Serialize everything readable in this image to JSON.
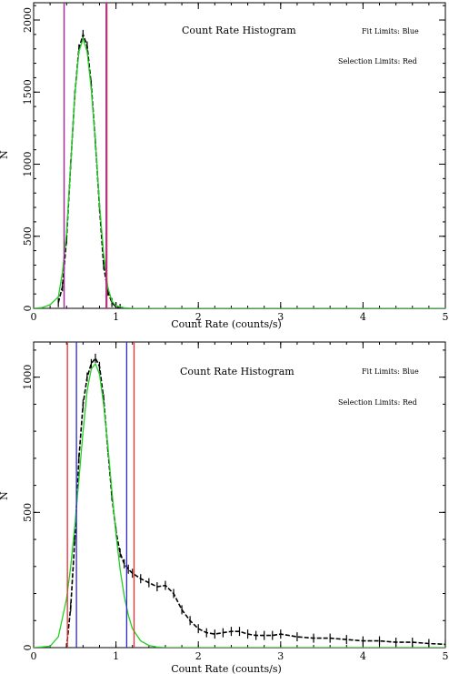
{
  "chart_data": [
    {
      "type": "line",
      "title": "Count Rate Histogram",
      "annotations": [
        "Fit Limits: Blue",
        "Selection Limits: Red"
      ],
      "xlabel": "Count Rate (counts/s)",
      "ylabel": "N",
      "xlim": [
        0,
        5
      ],
      "ylim": [
        0,
        2120
      ],
      "x_ticks": [
        "0",
        "1",
        "2",
        "3",
        "4",
        "5"
      ],
      "y_ticks": [
        {
          "value": 0,
          "label": "0"
        },
        {
          "value": 500,
          "label": "500"
        },
        {
          "value": 1000,
          "label": "1000"
        },
        {
          "value": 1500,
          "label": "1500"
        },
        {
          "value": 2000,
          "label": "2000"
        }
      ],
      "histogram": {
        "x": [
          0.3,
          0.35,
          0.4,
          0.45,
          0.5,
          0.55,
          0.6,
          0.65,
          0.7,
          0.75,
          0.8,
          0.85,
          0.9,
          0.95,
          1.0,
          1.05
        ],
        "y": [
          40,
          150,
          480,
          1000,
          1480,
          1800,
          1900,
          1820,
          1550,
          1150,
          700,
          300,
          120,
          40,
          10,
          0
        ]
      },
      "fit_curve": {
        "x": [
          0.0,
          0.1,
          0.2,
          0.3,
          0.35,
          0.4,
          0.45,
          0.5,
          0.55,
          0.6,
          0.65,
          0.7,
          0.75,
          0.8,
          0.85,
          0.9,
          0.95,
          1.0,
          1.1,
          1.2,
          1.3,
          5.0
        ],
        "y": [
          0,
          5,
          25,
          80,
          250,
          520,
          1000,
          1480,
          1780,
          1870,
          1780,
          1520,
          1150,
          720,
          380,
          150,
          50,
          18,
          4,
          0,
          0,
          0
        ]
      },
      "fit_limits": [
        0.37,
        0.88
      ],
      "selection_limits": [
        0.37,
        0.89
      ],
      "limit_colors": {
        "fit": "#2a2ad0",
        "selection": "#e83030",
        "overlap": "#9b2fa8",
        "fit_curve": "#22d022",
        "data": "#000000"
      }
    },
    {
      "type": "line",
      "title": "Count Rate Histogram",
      "annotations": [
        "Fit Limits: Blue",
        "Selection Limits: Red"
      ],
      "xlabel": "Count Rate (counts/s)",
      "ylabel": "N",
      "xlim": [
        0,
        5
      ],
      "ylim": [
        0,
        1130
      ],
      "x_ticks": [
        "0",
        "1",
        "2",
        "3",
        "4",
        "5"
      ],
      "y_ticks": [
        {
          "value": 0,
          "label": "0"
        },
        {
          "value": 500,
          "label": "500"
        },
        {
          "value": 1000,
          "label": "1000"
        }
      ],
      "histogram": {
        "x": [
          0.4,
          0.45,
          0.5,
          0.55,
          0.6,
          0.65,
          0.7,
          0.75,
          0.8,
          0.85,
          0.9,
          0.95,
          1.0,
          1.05,
          1.1,
          1.15,
          1.2,
          1.3,
          1.4,
          1.5,
          1.6,
          1.7,
          1.8,
          1.9,
          2.0,
          2.1,
          2.2,
          2.3,
          2.4,
          2.5,
          2.6,
          2.7,
          2.8,
          2.9,
          3.0,
          3.2,
          3.4,
          3.6,
          3.8,
          4.0,
          4.2,
          4.4,
          4.6,
          4.8,
          5.0
        ],
        "y": [
          0,
          150,
          400,
          700,
          900,
          1000,
          1050,
          1070,
          1040,
          920,
          740,
          560,
          430,
          350,
          310,
          290,
          275,
          255,
          240,
          225,
          230,
          200,
          140,
          100,
          70,
          55,
          50,
          55,
          60,
          60,
          50,
          45,
          45,
          45,
          50,
          40,
          35,
          35,
          30,
          25,
          25,
          20,
          20,
          15,
          12
        ]
      },
      "fit_curve": {
        "x": [
          0.0,
          0.2,
          0.3,
          0.4,
          0.45,
          0.5,
          0.55,
          0.6,
          0.65,
          0.7,
          0.75,
          0.8,
          0.85,
          0.9,
          0.95,
          1.0,
          1.05,
          1.1,
          1.15,
          1.2,
          1.3,
          1.4,
          1.5,
          1.6,
          1.8,
          5.0
        ],
        "y": [
          0,
          5,
          40,
          180,
          300,
          450,
          620,
          800,
          950,
          1030,
          1050,
          1010,
          900,
          750,
          580,
          420,
          290,
          190,
          120,
          70,
          25,
          8,
          2,
          0,
          0,
          0
        ]
      },
      "fit_limits": [
        0.52,
        1.13
      ],
      "selection_limits": [
        0.41,
        1.22
      ],
      "limit_colors": {
        "fit": "#2a2ad0",
        "selection": "#e83030",
        "fit_curve": "#22d022",
        "data": "#000000"
      }
    }
  ]
}
